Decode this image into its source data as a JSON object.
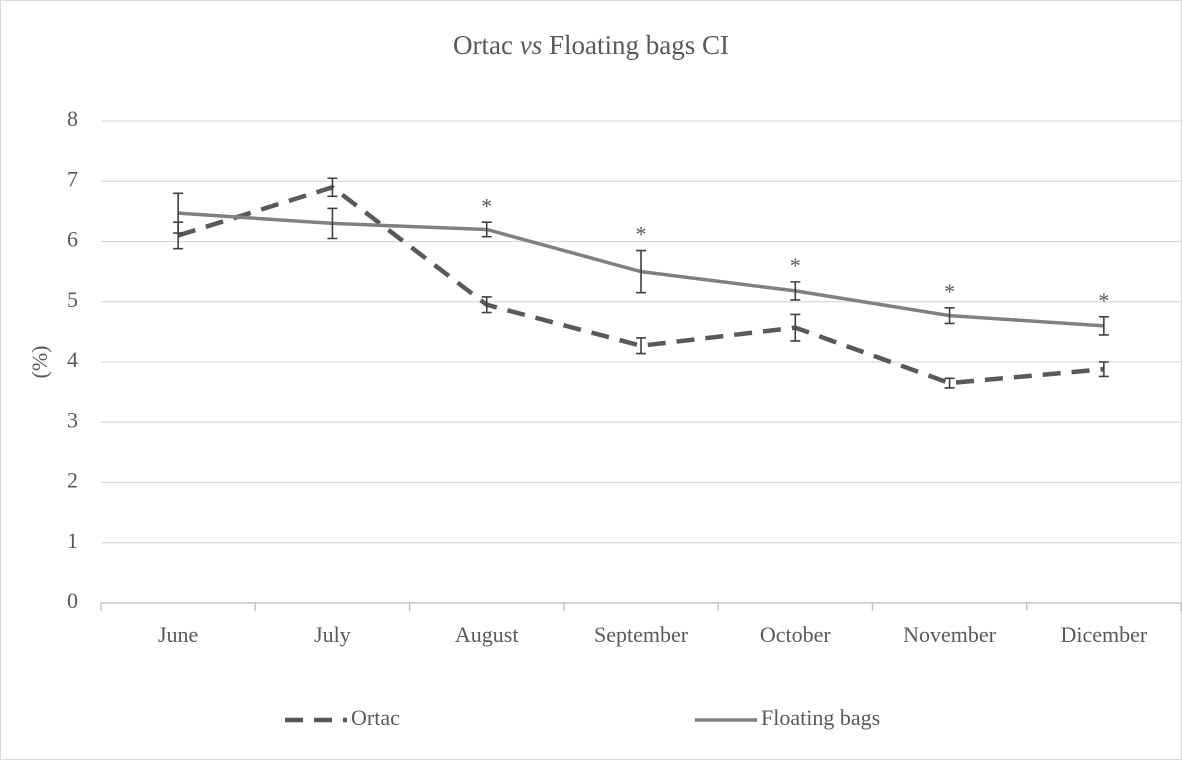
{
  "chart_data": {
    "type": "line",
    "title": [
      "Ortac ",
      "vs",
      " Floating bags CI"
    ],
    "y_label": "(%)",
    "categories": [
      "June",
      "July",
      "August",
      "September",
      "October",
      "November",
      "Dicember"
    ],
    "series": [
      {
        "name": "Ortac",
        "color": "#595959",
        "dashed": true,
        "values": [
          6.1,
          6.9,
          4.95,
          4.27,
          4.57,
          3.65,
          3.88
        ],
        "errors": [
          0.22,
          0.15,
          0.13,
          0.13,
          0.22,
          0.08,
          0.12
        ]
      },
      {
        "name": "Floating bags",
        "color": "#808080",
        "dashed": false,
        "values": [
          6.47,
          6.3,
          6.2,
          5.5,
          5.18,
          4.77,
          4.6
        ],
        "errors": [
          0.33,
          0.25,
          0.12,
          0.35,
          0.15,
          0.13,
          0.15
        ]
      }
    ],
    "significance": [
      null,
      null,
      "*",
      "*",
      "*",
      "*",
      "*"
    ],
    "ylim": [
      0,
      8
    ],
    "yticks": [
      0,
      1,
      2,
      3,
      4,
      5,
      6,
      7,
      8
    ],
    "grid": true,
    "legend": "bottom"
  }
}
